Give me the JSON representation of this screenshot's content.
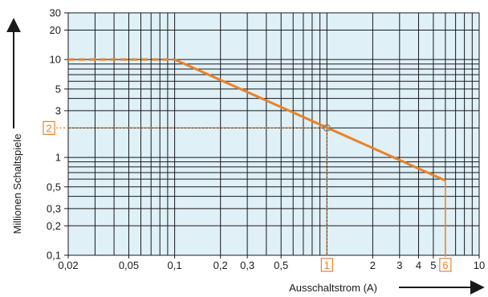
{
  "chart_data": {
    "type": "line",
    "xlabel": "Ausschaltstrom (A)",
    "ylabel": "Millionen Schaltspiele",
    "xscale": "log",
    "yscale": "log",
    "xlim": [
      0.02,
      10
    ],
    "ylim": [
      0.1,
      30
    ],
    "grid": true,
    "x_ticks": [
      {
        "value": 0.02,
        "label": "0,02"
      },
      {
        "value": 0.05,
        "label": "0,05"
      },
      {
        "value": 0.1,
        "label": "0,1"
      },
      {
        "value": 0.2,
        "label": "0,2"
      },
      {
        "value": 0.3,
        "label": "0,3"
      },
      {
        "value": 0.5,
        "label": "0,5"
      },
      {
        "value": 2,
        "label": "2"
      },
      {
        "value": 3,
        "label": "3"
      },
      {
        "value": 4,
        "label": "4"
      },
      {
        "value": 5,
        "label": "5"
      },
      {
        "value": 10,
        "label": "10"
      }
    ],
    "y_ticks": [
      {
        "value": 0.1,
        "label": "0,1"
      },
      {
        "value": 0.2,
        "label": "0,2"
      },
      {
        "value": 0.3,
        "label": "0,3"
      },
      {
        "value": 0.5,
        "label": "0,5"
      },
      {
        "value": 1,
        "label": "1"
      },
      {
        "value": 3,
        "label": "3"
      },
      {
        "value": 5,
        "label": "5"
      },
      {
        "value": 10,
        "label": "10"
      },
      {
        "value": 20,
        "label": "20"
      },
      {
        "value": 30,
        "label": "30"
      }
    ],
    "series": [
      {
        "style": "dashed",
        "x": [
          0.02,
          0.1
        ],
        "y": [
          10,
          10
        ]
      },
      {
        "style": "solid",
        "x": [
          0.1,
          6
        ],
        "y": [
          10,
          0.58
        ]
      }
    ],
    "markers": [
      {
        "axis": "x",
        "value": 1,
        "label": "1"
      },
      {
        "axis": "x",
        "value": 6,
        "label": "6"
      },
      {
        "axis": "y",
        "value": 2,
        "label": "2"
      }
    ],
    "highlight_point": {
      "x": 1,
      "y": 2
    },
    "colors": {
      "plot_background": "#dff0f7",
      "grid": "#1a1a1a",
      "curve": "#e8822a",
      "marker": "#e8822a"
    }
  }
}
